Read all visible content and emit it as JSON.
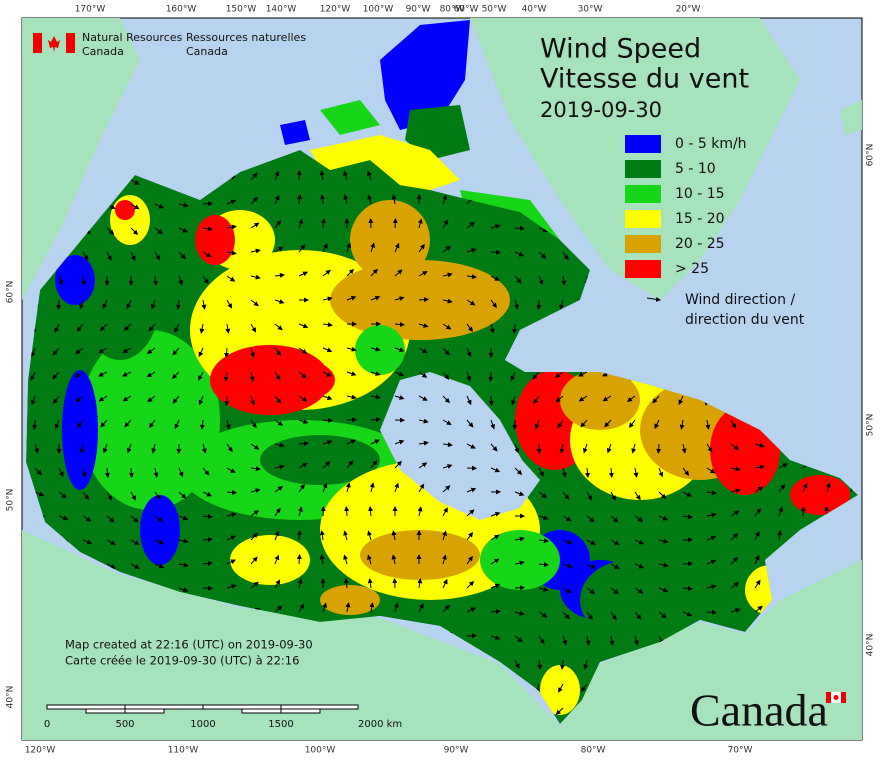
{
  "agency": {
    "en_line1": "Natural Resources",
    "en_line2": "Canada",
    "fr_line1": "Ressources naturelles",
    "fr_line2": "Canada"
  },
  "title": {
    "en": "Wind Speed",
    "fr": "Vitesse du vent",
    "date": "2019-09-30"
  },
  "legend": {
    "items": [
      {
        "label": "0 - 5 km/h",
        "color": "#0000ff"
      },
      {
        "label": "5 - 10",
        "color": "#007a12"
      },
      {
        "label": "10 - 15",
        "color": "#17d517"
      },
      {
        "label": "15 - 20",
        "color": "#ffff00"
      },
      {
        "label": "20 - 25",
        "color": "#d8a300"
      },
      {
        "label": "> 25",
        "color": "#ff0000"
      }
    ],
    "arrow_label": [
      "Wind direction /",
      "direction du vent"
    ]
  },
  "credits": [
    "Map created at 22:16 (UTC) on 2019-09-30",
    "Carte créée le 2019-09-30 (UTC) à 22:16"
  ],
  "scale_bar": [
    "0",
    "500",
    "1000",
    "1500",
    "2000  km"
  ],
  "top_longitudes": [
    "170°W",
    "160°W",
    "150°W",
    "140°W",
    "120°W",
    "100°W",
    "90°W",
    "80°W",
    "60°W",
    "50°W",
    "40°W",
    "30°W",
    "20°W"
  ],
  "bottom_longitudes": [
    "120°W",
    "110°W",
    "100°W",
    "90°W",
    "80°W",
    "70°W"
  ],
  "left_latitudes": [
    "60°N",
    "50°N",
    "40°N"
  ],
  "right_latitudes": [
    "60°N",
    "50°N",
    "40°N"
  ],
  "wordmark": "Canada"
}
